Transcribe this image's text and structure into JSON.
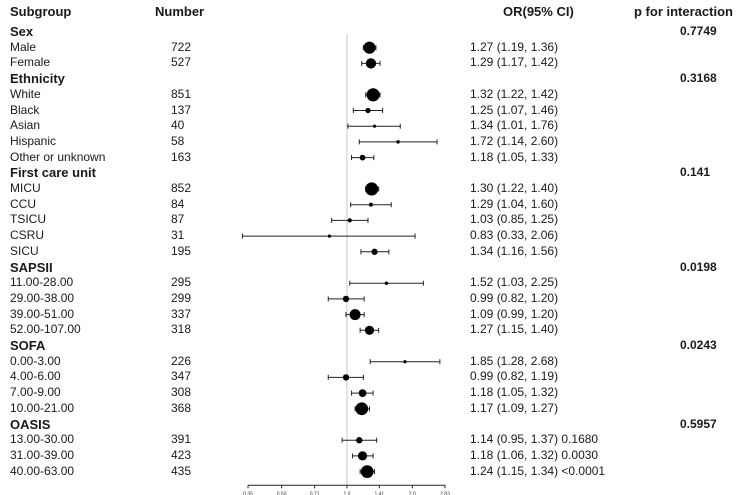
{
  "headers": {
    "subgroup": "Subgroup",
    "number": "Number",
    "or": "OR(95% CI)",
    "p": "p for interaction"
  },
  "chart_data": {
    "type": "forest",
    "x_ticks": [
      "0.35",
      "0.50",
      "0.71",
      "1.0",
      "1.41",
      "2.0",
      "2.83"
    ],
    "reference_line": 1.0,
    "x_scale": "log",
    "rows": [
      {
        "kind": "group",
        "label": "Sex",
        "p": "0.7749"
      },
      {
        "kind": "item",
        "label": "Male",
        "n": "722",
        "or": 1.27,
        "lo": 1.19,
        "hi": 1.36,
        "text": "1.27 (1.19, 1.36)",
        "weight": 722
      },
      {
        "kind": "item",
        "label": "Female",
        "n": "527",
        "or": 1.29,
        "lo": 1.17,
        "hi": 1.42,
        "text": "1.29 (1.17, 1.42)",
        "weight": 527
      },
      {
        "kind": "group",
        "label": "Ethnicity",
        "p": "0.3168"
      },
      {
        "kind": "item",
        "label": "White",
        "n": "851",
        "or": 1.32,
        "lo": 1.22,
        "hi": 1.42,
        "text": "1.32 (1.22, 1.42)",
        "weight": 851
      },
      {
        "kind": "item",
        "label": "Black",
        "n": "137",
        "or": 1.25,
        "lo": 1.07,
        "hi": 1.46,
        "text": "1.25 (1.07, 1.46)",
        "weight": 137
      },
      {
        "kind": "item",
        "label": "Asian",
        "n": "40",
        "or": 1.34,
        "lo": 1.01,
        "hi": 1.76,
        "text": "1.34 (1.01, 1.76)",
        "weight": 40
      },
      {
        "kind": "item",
        "label": "Hispanic",
        "n": "58",
        "or": 1.72,
        "lo": 1.14,
        "hi": 2.6,
        "text": "1.72 (1.14, 2.60)",
        "weight": 58
      },
      {
        "kind": "item",
        "label": "Other or unknown",
        "n": "163",
        "or": 1.18,
        "lo": 1.05,
        "hi": 1.33,
        "text": "1.18 (1.05, 1.33)",
        "weight": 163
      },
      {
        "kind": "group",
        "label": "First care unit",
        "p": "0.141"
      },
      {
        "kind": "item",
        "label": "MICU",
        "n": "852",
        "or": 1.3,
        "lo": 1.22,
        "hi": 1.4,
        "text": "1.30 (1.22, 1.40)",
        "weight": 852
      },
      {
        "kind": "item",
        "label": "CCU",
        "n": "84",
        "or": 1.29,
        "lo": 1.04,
        "hi": 1.6,
        "text": "1.29 (1.04, 1.60)",
        "weight": 84
      },
      {
        "kind": "item",
        "label": "TSICU",
        "n": "87",
        "or": 1.03,
        "lo": 0.85,
        "hi": 1.25,
        "text": "1.03 (0.85, 1.25)",
        "weight": 87
      },
      {
        "kind": "item",
        "label": "CSRU",
        "n": "31",
        "or": 0.83,
        "lo": 0.33,
        "hi": 2.06,
        "text": "0.83 (0.33, 2.06)",
        "weight": 31
      },
      {
        "kind": "item",
        "label": "SICU",
        "n": "195",
        "or": 1.34,
        "lo": 1.16,
        "hi": 1.56,
        "text": "1.34 (1.16, 1.56)",
        "weight": 195
      },
      {
        "kind": "group",
        "label": "SAPSII",
        "p": "0.0198"
      },
      {
        "kind": "item",
        "label": "11.00-28.00",
        "n": "295",
        "or": 1.52,
        "lo": 1.03,
        "hi": 2.25,
        "text": "1.52 (1.03, 2.25)",
        "weight": 60
      },
      {
        "kind": "item",
        "label": "29.00-38.00",
        "n": "299",
        "or": 0.99,
        "lo": 0.82,
        "hi": 1.2,
        "text": "0.99 (0.82, 1.20)",
        "weight": 200
      },
      {
        "kind": "item",
        "label": "39.00-51.00",
        "n": "337",
        "or": 1.09,
        "lo": 0.99,
        "hi": 1.2,
        "text": "1.09 (0.99, 1.20)",
        "weight": 600
      },
      {
        "kind": "item",
        "label": "52.00-107.00",
        "n": "318",
        "or": 1.27,
        "lo": 1.15,
        "hi": 1.4,
        "text": "1.27 (1.15, 1.40)",
        "weight": 420
      },
      {
        "kind": "group",
        "label": "SOFA",
        "p": "0.0243"
      },
      {
        "kind": "item",
        "label": "0.00-3.00",
        "n": "226",
        "or": 1.85,
        "lo": 1.28,
        "hi": 2.68,
        "text": "1.85 (1.28, 2.68)",
        "weight": 50
      },
      {
        "kind": "item",
        "label": "4.00-6.00",
        "n": "347",
        "or": 0.99,
        "lo": 0.82,
        "hi": 1.19,
        "text": "0.99 (0.82, 1.19)",
        "weight": 200
      },
      {
        "kind": "item",
        "label": "7.00-9.00",
        "n": "308",
        "or": 1.18,
        "lo": 1.05,
        "hi": 1.32,
        "text": "1.18 (1.05, 1.32)",
        "weight": 300
      },
      {
        "kind": "item",
        "label": "10.00-21.00",
        "n": "368",
        "or": 1.17,
        "lo": 1.09,
        "hi": 1.27,
        "text": "1.17 (1.09, 1.27)",
        "weight": 800
      },
      {
        "kind": "group",
        "label": "OASIS",
        "p": "0.5957"
      },
      {
        "kind": "item",
        "label": "13.00-30.00",
        "n": "391",
        "or": 1.14,
        "lo": 0.95,
        "hi": 1.37,
        "text": "1.14 (0.95, 1.37) 0.1680",
        "weight": 200
      },
      {
        "kind": "item",
        "label": "31.00-39.00",
        "n": "423",
        "or": 1.18,
        "lo": 1.06,
        "hi": 1.32,
        "text": "1.18 (1.06, 1.32) 0.0030",
        "weight": 420
      },
      {
        "kind": "item",
        "label": "40.00-63.00",
        "n": "435",
        "or": 1.24,
        "lo": 1.15,
        "hi": 1.34,
        "text": "1.24 (1.15, 1.34) <0.0001",
        "weight": 800
      }
    ]
  }
}
